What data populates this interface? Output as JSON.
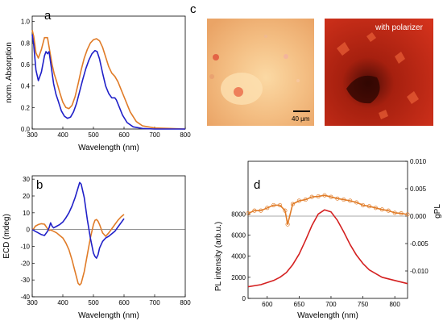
{
  "panel_labels": {
    "a": "a",
    "b": "b",
    "c": "c",
    "d": "d"
  },
  "photos": {
    "scalebar_label": "40 μm",
    "polarizer_label": "with polarizer",
    "left_photo_subject": "orange-birefringent-texture-bright-field",
    "right_photo_subject": "red-domain-texture-crossed-polarizers"
  },
  "chart_data": [
    {
      "id": "a",
      "type": "line",
      "title": "",
      "xlabel": "Wavelength (nm)",
      "ylabel": "norm. Absorption",
      "xlim": [
        300,
        800
      ],
      "ylim": [
        0,
        1.05
      ],
      "xticks": [
        300,
        400,
        500,
        600,
        700,
        800
      ],
      "yticks": [
        0.0,
        0.2,
        0.4,
        0.6,
        0.8,
        1.0
      ],
      "ytick_labels": [
        "0.0",
        "0.2",
        "0.4",
        "0.6",
        "0.8",
        "1.0"
      ],
      "grid": false,
      "series": [
        {
          "color": "#e07b27",
          "x": [
            300,
            305,
            312,
            320,
            330,
            340,
            350,
            357,
            365,
            372,
            380,
            390,
            400,
            410,
            420,
            430,
            440,
            450,
            460,
            470,
            480,
            490,
            500,
            510,
            520,
            530,
            540,
            550,
            560,
            570,
            580,
            590,
            600,
            620,
            640,
            660,
            700,
            750,
            800
          ],
          "y": [
            0.92,
            0.86,
            0.71,
            0.66,
            0.74,
            0.85,
            0.85,
            0.73,
            0.6,
            0.51,
            0.44,
            0.34,
            0.25,
            0.2,
            0.19,
            0.22,
            0.3,
            0.42,
            0.55,
            0.66,
            0.74,
            0.8,
            0.83,
            0.84,
            0.82,
            0.76,
            0.67,
            0.58,
            0.52,
            0.49,
            0.44,
            0.37,
            0.3,
            0.16,
            0.07,
            0.03,
            0.01,
            0.005,
            0.0
          ]
        },
        {
          "color": "#2020c8",
          "x": [
            300,
            305,
            312,
            320,
            330,
            340,
            345,
            350,
            355,
            362,
            370,
            378,
            385,
            395,
            405,
            415,
            425,
            435,
            445,
            455,
            465,
            475,
            485,
            495,
            505,
            512,
            520,
            530,
            540,
            550,
            560,
            570,
            575,
            585,
            595,
            610,
            630,
            660,
            700,
            750,
            800
          ],
          "y": [
            0.88,
            0.78,
            0.55,
            0.45,
            0.53,
            0.68,
            0.72,
            0.7,
            0.72,
            0.58,
            0.42,
            0.32,
            0.26,
            0.17,
            0.12,
            0.1,
            0.11,
            0.16,
            0.24,
            0.35,
            0.46,
            0.56,
            0.64,
            0.7,
            0.73,
            0.72,
            0.65,
            0.52,
            0.4,
            0.33,
            0.29,
            0.29,
            0.27,
            0.2,
            0.13,
            0.06,
            0.02,
            0.005,
            0.0,
            0.0,
            0.0
          ]
        }
      ]
    },
    {
      "id": "b",
      "type": "line",
      "title": "",
      "xlabel": "Wavelength (nm)",
      "ylabel": "ECD (mdeg)",
      "xlim": [
        300,
        800
      ],
      "ylim": [
        -40,
        32
      ],
      "xticks": [
        300,
        400,
        500,
        600,
        700,
        800
      ],
      "yticks": [
        -40,
        -30,
        -20,
        -10,
        0,
        10,
        20,
        30
      ],
      "zero_line": true,
      "grid": false,
      "series": [
        {
          "color": "#e07b27",
          "x": [
            300,
            305,
            310,
            320,
            330,
            340,
            350,
            355,
            360,
            370,
            380,
            390,
            400,
            410,
            420,
            430,
            440,
            450,
            455,
            460,
            470,
            480,
            490,
            500,
            505,
            510,
            515,
            520,
            530,
            540,
            550,
            560,
            570,
            580,
            590,
            600
          ],
          "y": [
            0,
            0.5,
            2.0,
            3.0,
            3.5,
            3.2,
            0.5,
            -0.5,
            -0.2,
            -1.0,
            -2.0,
            -3.5,
            -5.0,
            -8.0,
            -12.0,
            -18.0,
            -25.0,
            -32.0,
            -33.0,
            -32.0,
            -25.0,
            -15.0,
            -5.0,
            3.0,
            5.5,
            6.0,
            5.0,
            3.0,
            -2.0,
            -4.0,
            -2.0,
            0.5,
            3.0,
            5.5,
            7.5,
            9.0
          ]
        },
        {
          "color": "#2020c8",
          "x": [
            300,
            305,
            310,
            320,
            330,
            340,
            350,
            355,
            360,
            365,
            370,
            380,
            390,
            400,
            410,
            420,
            430,
            440,
            450,
            455,
            460,
            470,
            480,
            490,
            500,
            505,
            510,
            515,
            520,
            530,
            540,
            550,
            560,
            570,
            580,
            590,
            600
          ],
          "y": [
            0,
            -0.5,
            -1.0,
            -2.0,
            -3.0,
            -3.5,
            -1.0,
            1.0,
            4.0,
            2.0,
            1.0,
            2.0,
            3.0,
            4.5,
            7.0,
            10.0,
            14.0,
            19.0,
            25.0,
            28.0,
            27.0,
            19.0,
            6.0,
            -5.0,
            -14.0,
            -16.0,
            -17.0,
            -15.0,
            -11.0,
            -7.0,
            -5.0,
            -4.0,
            -2.5,
            -1.0,
            1.5,
            4.0,
            6.5
          ]
        }
      ]
    },
    {
      "id": "d",
      "type": "line",
      "title": "",
      "xlabel": "Wavelength (nm)",
      "ylabel": "PL intensity (arb.u.)",
      "ylabel_right": "gPL",
      "xlim": [
        570,
        820
      ],
      "ylim": [
        0,
        13000
      ],
      "ylim_right": [
        -0.015,
        0.01
      ],
      "xticks": [
        600,
        650,
        700,
        750,
        800
      ],
      "yticks": [
        0,
        2000,
        4000,
        6000,
        8000
      ],
      "yticks_right": [
        -0.01,
        -0.005,
        0.0,
        0.005,
        0.01
      ],
      "ytick_right_labels": [
        "-0.010",
        "-0.005",
        "0.000",
        "0.005",
        "0.010"
      ],
      "grid": false,
      "series": [
        {
          "color": "#d42020",
          "axis": "left",
          "x": [
            570,
            590,
            610,
            620,
            630,
            640,
            650,
            660,
            670,
            680,
            690,
            700,
            710,
            720,
            730,
            740,
            750,
            760,
            780,
            800,
            820
          ],
          "y": [
            1100,
            1300,
            1700,
            2000,
            2450,
            3200,
            4200,
            5500,
            6900,
            8000,
            8400,
            8200,
            7400,
            6300,
            5100,
            4100,
            3300,
            2700,
            2000,
            1700,
            1400
          ]
        },
        {
          "color": "#e07b27",
          "axis": "right",
          "marker": "circle",
          "x": [
            570,
            580,
            590,
            600,
            610,
            620,
            628,
            632,
            640,
            650,
            660,
            670,
            680,
            690,
            700,
            710,
            720,
            730,
            740,
            750,
            760,
            770,
            780,
            790,
            800,
            810,
            820
          ],
          "y": [
            0.0005,
            0.001,
            0.001,
            0.0015,
            0.002,
            0.002,
            0.001,
            -0.0015,
            0.0022,
            0.0028,
            0.003,
            0.0035,
            0.0036,
            0.0038,
            0.0035,
            0.0032,
            0.003,
            0.0028,
            0.0025,
            0.002,
            0.0018,
            0.0015,
            0.0012,
            0.001,
            0.0006,
            0.0005,
            0.0003
          ]
        }
      ]
    }
  ]
}
